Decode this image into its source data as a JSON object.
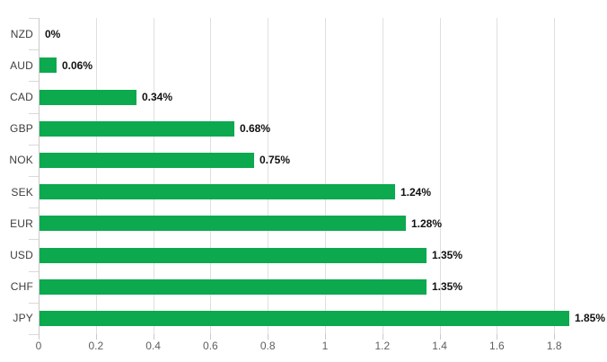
{
  "chart_data": {
    "type": "bar",
    "orientation": "horizontal",
    "title": "",
    "xlabel": "",
    "ylabel": "",
    "categories": [
      "NZD",
      "AUD",
      "CAD",
      "GBP",
      "NOK",
      "SEK",
      "EUR",
      "USD",
      "CHF",
      "JPY"
    ],
    "values": [
      0,
      0.06,
      0.34,
      0.68,
      0.75,
      1.24,
      1.28,
      1.35,
      1.35,
      1.85
    ],
    "value_labels": [
      "0%",
      "0.06%",
      "0.34%",
      "0.68%",
      "0.75%",
      "1.24%",
      "1.28%",
      "1.35%",
      "1.35%",
      "1.85%"
    ],
    "x_ticks": [
      0,
      0.2,
      0.4,
      0.6,
      0.8,
      1,
      1.2,
      1.4,
      1.6,
      1.8
    ],
    "x_tick_labels": [
      "0",
      "0.2",
      "0.4",
      "0.6",
      "0.8",
      "1",
      "1.2",
      "1.4",
      "1.6",
      "1.8"
    ],
    "xlim": [
      0,
      1.99
    ],
    "grid": "vertical-only",
    "legend_position": "none",
    "bar_color": "#0CA94F",
    "grid_color": "#dfdfdf",
    "axis_line_color": "#c9c9c9",
    "category_label_color": "#3d3d3d",
    "tick_label_color": "#5f5f5f",
    "value_label_color": "#111111",
    "background_color": "#ffffff"
  }
}
